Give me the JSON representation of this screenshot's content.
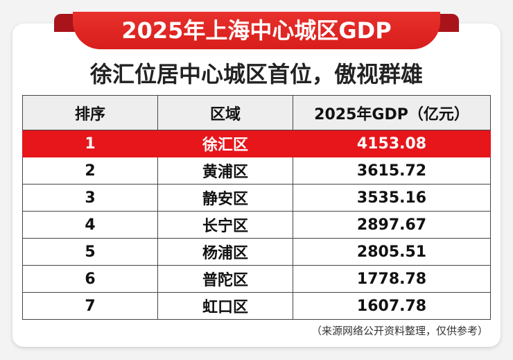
{
  "title": "2025年上海中心城区GDP",
  "subtitle": "徐汇位居中心城区首位，傲视群雄",
  "colors": {
    "ribbon": "#e02420",
    "highlight_row": "#e6161b",
    "header_bg": "#eeeeee"
  },
  "chart_data": {
    "type": "table",
    "columns": [
      "排序",
      "区域",
      "2025年GDP（亿元）"
    ],
    "rows": [
      [
        "1",
        "徐汇区",
        "4153.08"
      ],
      [
        "2",
        "黄浦区",
        "3615.72"
      ],
      [
        "3",
        "静安区",
        "3535.16"
      ],
      [
        "4",
        "长宁区",
        "2897.67"
      ],
      [
        "5",
        "杨浦区",
        "2805.51"
      ],
      [
        "6",
        "普陀区",
        "1778.78"
      ],
      [
        "7",
        "虹口区",
        "1607.78"
      ]
    ],
    "highlighted_row": 0
  },
  "note": "（来源网络公开资料整理，仅供参考）"
}
